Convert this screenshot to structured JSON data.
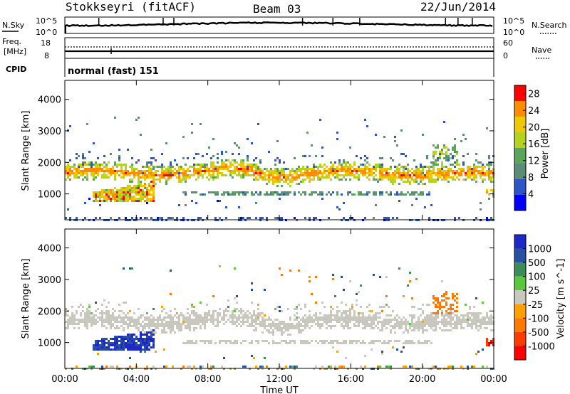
{
  "header": {
    "station": "Stokkseyri (fitACF)",
    "beam": "Beam 03",
    "date": "22/Jun/2014"
  },
  "top_panels": {
    "nsky_label": "N.Sky",
    "nsearch_label": "N.Search",
    "nsky_tick_top": "10^5",
    "nsky_tick_bottom": "10^0",
    "freq_label_1": "Freq.",
    "freq_label_2": "[MHz]",
    "freq_tick_top": "18",
    "freq_tick_bottom": "8",
    "nave_label": "Nave",
    "nave_tick_top": "60",
    "nave_tick_bottom": "0",
    "cpid_label": "CPID",
    "cpid_value": "normal (fast) 151"
  },
  "colors": {
    "power": [
      "#0000ff",
      "#2d55c8",
      "#5a8c78",
      "#5aa55a",
      "#b4d21e",
      "#f0c800",
      "#ff8c00",
      "#ff0000"
    ],
    "velocity_pos": [
      "#1e28c8",
      "#2850a0",
      "#3c8c5a",
      "#5ac83c",
      "#c8c8be"
    ],
    "velocity_neg": [
      "#c8c8be",
      "#ffa000",
      "#ff7800",
      "#ff3c00",
      "#ff0000"
    ],
    "background_gray": "#c8c8be"
  },
  "chart_data": [
    {
      "type": "heatmap",
      "title": "",
      "xlabel": "Time UT",
      "ylabel": "Slant Range [km]",
      "x_ticks": [
        "00:00",
        "04:00",
        "08:00",
        "12:00",
        "16:00",
        "20:00",
        "00:00"
      ],
      "xlim_hours": [
        0,
        24
      ],
      "y_ticks": [
        "1000",
        "2000",
        "3000",
        "4000"
      ],
      "ylim": [
        180,
        4600
      ],
      "colorbar": {
        "label": "Power [dB]",
        "ticks": [
          "4",
          "8",
          "12",
          "16",
          "20",
          "24",
          "28"
        ],
        "range": [
          0,
          30
        ]
      },
      "features": [
        {
          "name": "main scatter band",
          "hours": [
            0,
            24
          ],
          "range_km": [
            1400,
            2000
          ],
          "power_db": [
            8,
            26
          ]
        },
        {
          "name": "near range band",
          "hours": [
            1.5,
            5.0
          ],
          "range_km": [
            800,
            1500
          ],
          "power_db": [
            12,
            28
          ]
        },
        {
          "name": "lower band",
          "hours": [
            6.5,
            20.5
          ],
          "range_km": [
            980,
            1100
          ],
          "power_db": [
            6,
            14
          ]
        },
        {
          "name": "near ground scatter",
          "hours": [
            0,
            24
          ],
          "range_km": [
            200,
            320
          ],
          "power_db": [
            3,
            8
          ]
        }
      ]
    },
    {
      "type": "heatmap",
      "title": "",
      "xlabel": "Time UT",
      "ylabel": "Slant Range [km]",
      "x_ticks": [
        "00:00",
        "04:00",
        "08:00",
        "12:00",
        "16:00",
        "20:00",
        "00:00"
      ],
      "xlim_hours": [
        0,
        24
      ],
      "y_ticks": [
        "1000",
        "2000",
        "3000",
        "4000"
      ],
      "ylim": [
        180,
        4600
      ],
      "colorbar": {
        "label": "Velocity [m s^-1]",
        "ticks": [
          "1000",
          "500",
          "100",
          "25",
          "-25",
          "-100",
          "-500",
          "-1000"
        ]
      },
      "features": [
        {
          "name": "ground scatter band",
          "hours": [
            0,
            24
          ],
          "range_km": [
            1400,
            2000
          ],
          "velocity": [
            -25,
            25
          ]
        },
        {
          "name": "positive velocity patch",
          "hours": [
            1.5,
            5.0
          ],
          "range_km": [
            800,
            1600
          ],
          "velocity": [
            100,
            1000
          ]
        },
        {
          "name": "negative velocity patch",
          "hours": [
            20.5,
            22
          ],
          "range_km": [
            1900,
            2600
          ],
          "velocity": [
            -500,
            -100
          ]
        },
        {
          "name": "negative patch late",
          "hours": [
            23.5,
            24
          ],
          "range_km": [
            900,
            1200
          ],
          "velocity": [
            -1000,
            -500
          ]
        }
      ]
    }
  ]
}
